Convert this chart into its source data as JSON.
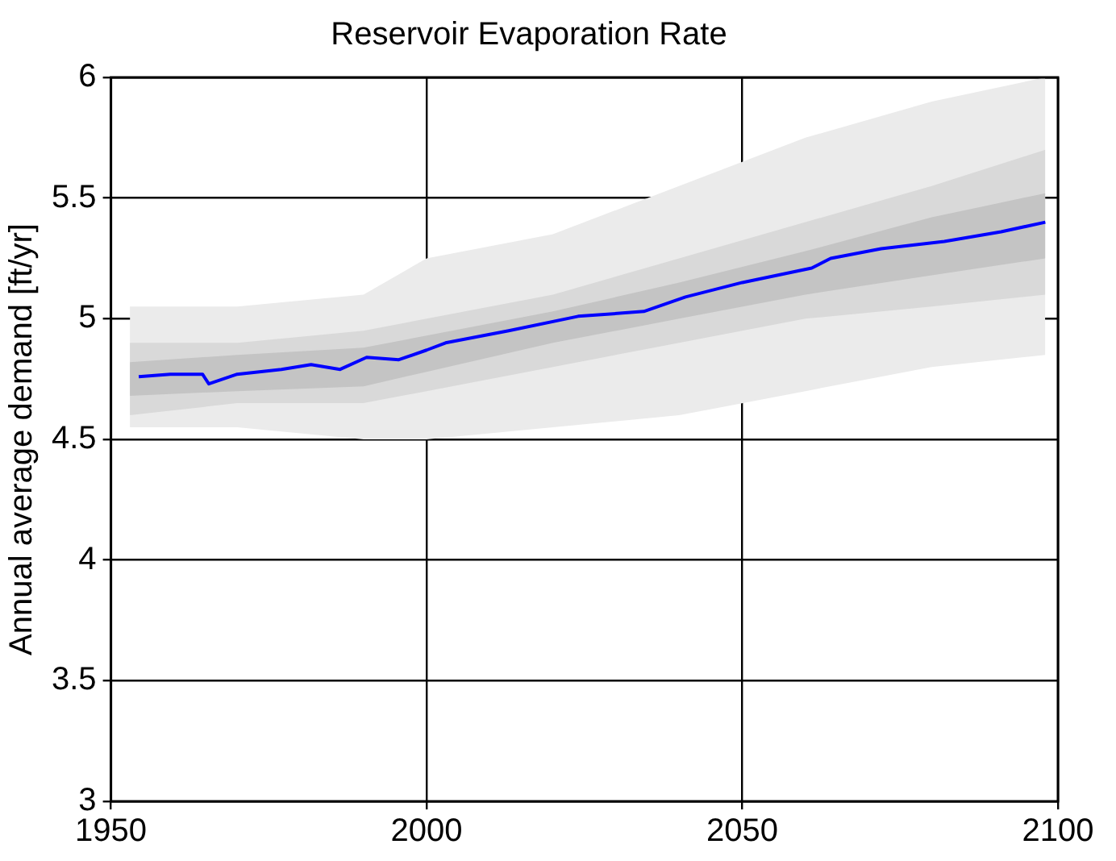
{
  "chart_data": {
    "type": "line",
    "title": "Reservoir Evaporation Rate",
    "ylabel": "Annual average demand [ft/yr]",
    "xlim": [
      1950,
      2100
    ],
    "xticks": [
      1950,
      2000,
      2050,
      2100
    ],
    "ylim": [
      3,
      6
    ],
    "yticks": [
      3,
      3.5,
      4,
      4.5,
      5,
      5.5,
      6
    ],
    "grid": true,
    "legend": false,
    "marker": "none",
    "line_style": "solid",
    "series": [
      {
        "color": "#ebebeb",
        "x": [
          1953,
          1970,
          1990,
          2000,
          2020,
          2040,
          2060,
          2080,
          2098
        ],
        "values": [
          null,
          null,
          null,
          null,
          null,
          null,
          null,
          null,
          null
        ],
        "lower": [
          4.55,
          4.55,
          4.5,
          4.5,
          4.55,
          4.6,
          4.7,
          4.8,
          4.85
        ],
        "upper": [
          5.05,
          5.05,
          5.1,
          5.25,
          5.35,
          5.55,
          5.75,
          5.9,
          6.0
        ]
      },
      {
        "color": "#d9d9d9",
        "x": [
          1953,
          1970,
          1990,
          2000,
          2020,
          2040,
          2060,
          2080,
          2098
        ],
        "values": [
          null,
          null,
          null,
          null,
          null,
          null,
          null,
          null,
          null
        ],
        "lower": [
          4.6,
          4.65,
          4.65,
          4.7,
          4.8,
          4.9,
          5.0,
          5.05,
          5.1
        ],
        "upper": [
          4.9,
          4.9,
          4.95,
          5.0,
          5.1,
          5.25,
          5.4,
          5.55,
          5.7
        ]
      },
      {
        "color": "#c4c4c4",
        "x": [
          1953,
          1970,
          1990,
          2000,
          2020,
          2040,
          2060,
          2080,
          2098
        ],
        "values": [
          null,
          null,
          null,
          null,
          null,
          null,
          null,
          null,
          null
        ],
        "lower": [
          4.68,
          4.7,
          4.72,
          4.78,
          4.9,
          5.0,
          5.1,
          5.18,
          5.25
        ],
        "upper": [
          4.82,
          4.85,
          4.88,
          4.93,
          5.03,
          5.15,
          5.28,
          5.42,
          5.52
        ]
      },
      {
        "color": "#0000ff",
        "x": [
          1954.4,
          1959.4,
          1964.5,
          1965.5,
          1970,
          1977,
          1981.7,
          1986.3,
          1990.5,
          1995.6,
          2000,
          2003,
          2013,
          2024,
          2034.4,
          2041,
          2050,
          2061,
          2064,
          2072,
          2082,
          2091,
          2098
        ],
        "values": [
          4.76,
          4.77,
          4.77,
          4.73,
          4.77,
          4.79,
          4.81,
          4.79,
          4.84,
          4.83,
          4.87,
          4.9,
          4.95,
          5.01,
          5.03,
          5.09,
          5.15,
          5.21,
          5.25,
          5.29,
          5.32,
          5.36,
          5.4
        ]
      }
    ]
  }
}
